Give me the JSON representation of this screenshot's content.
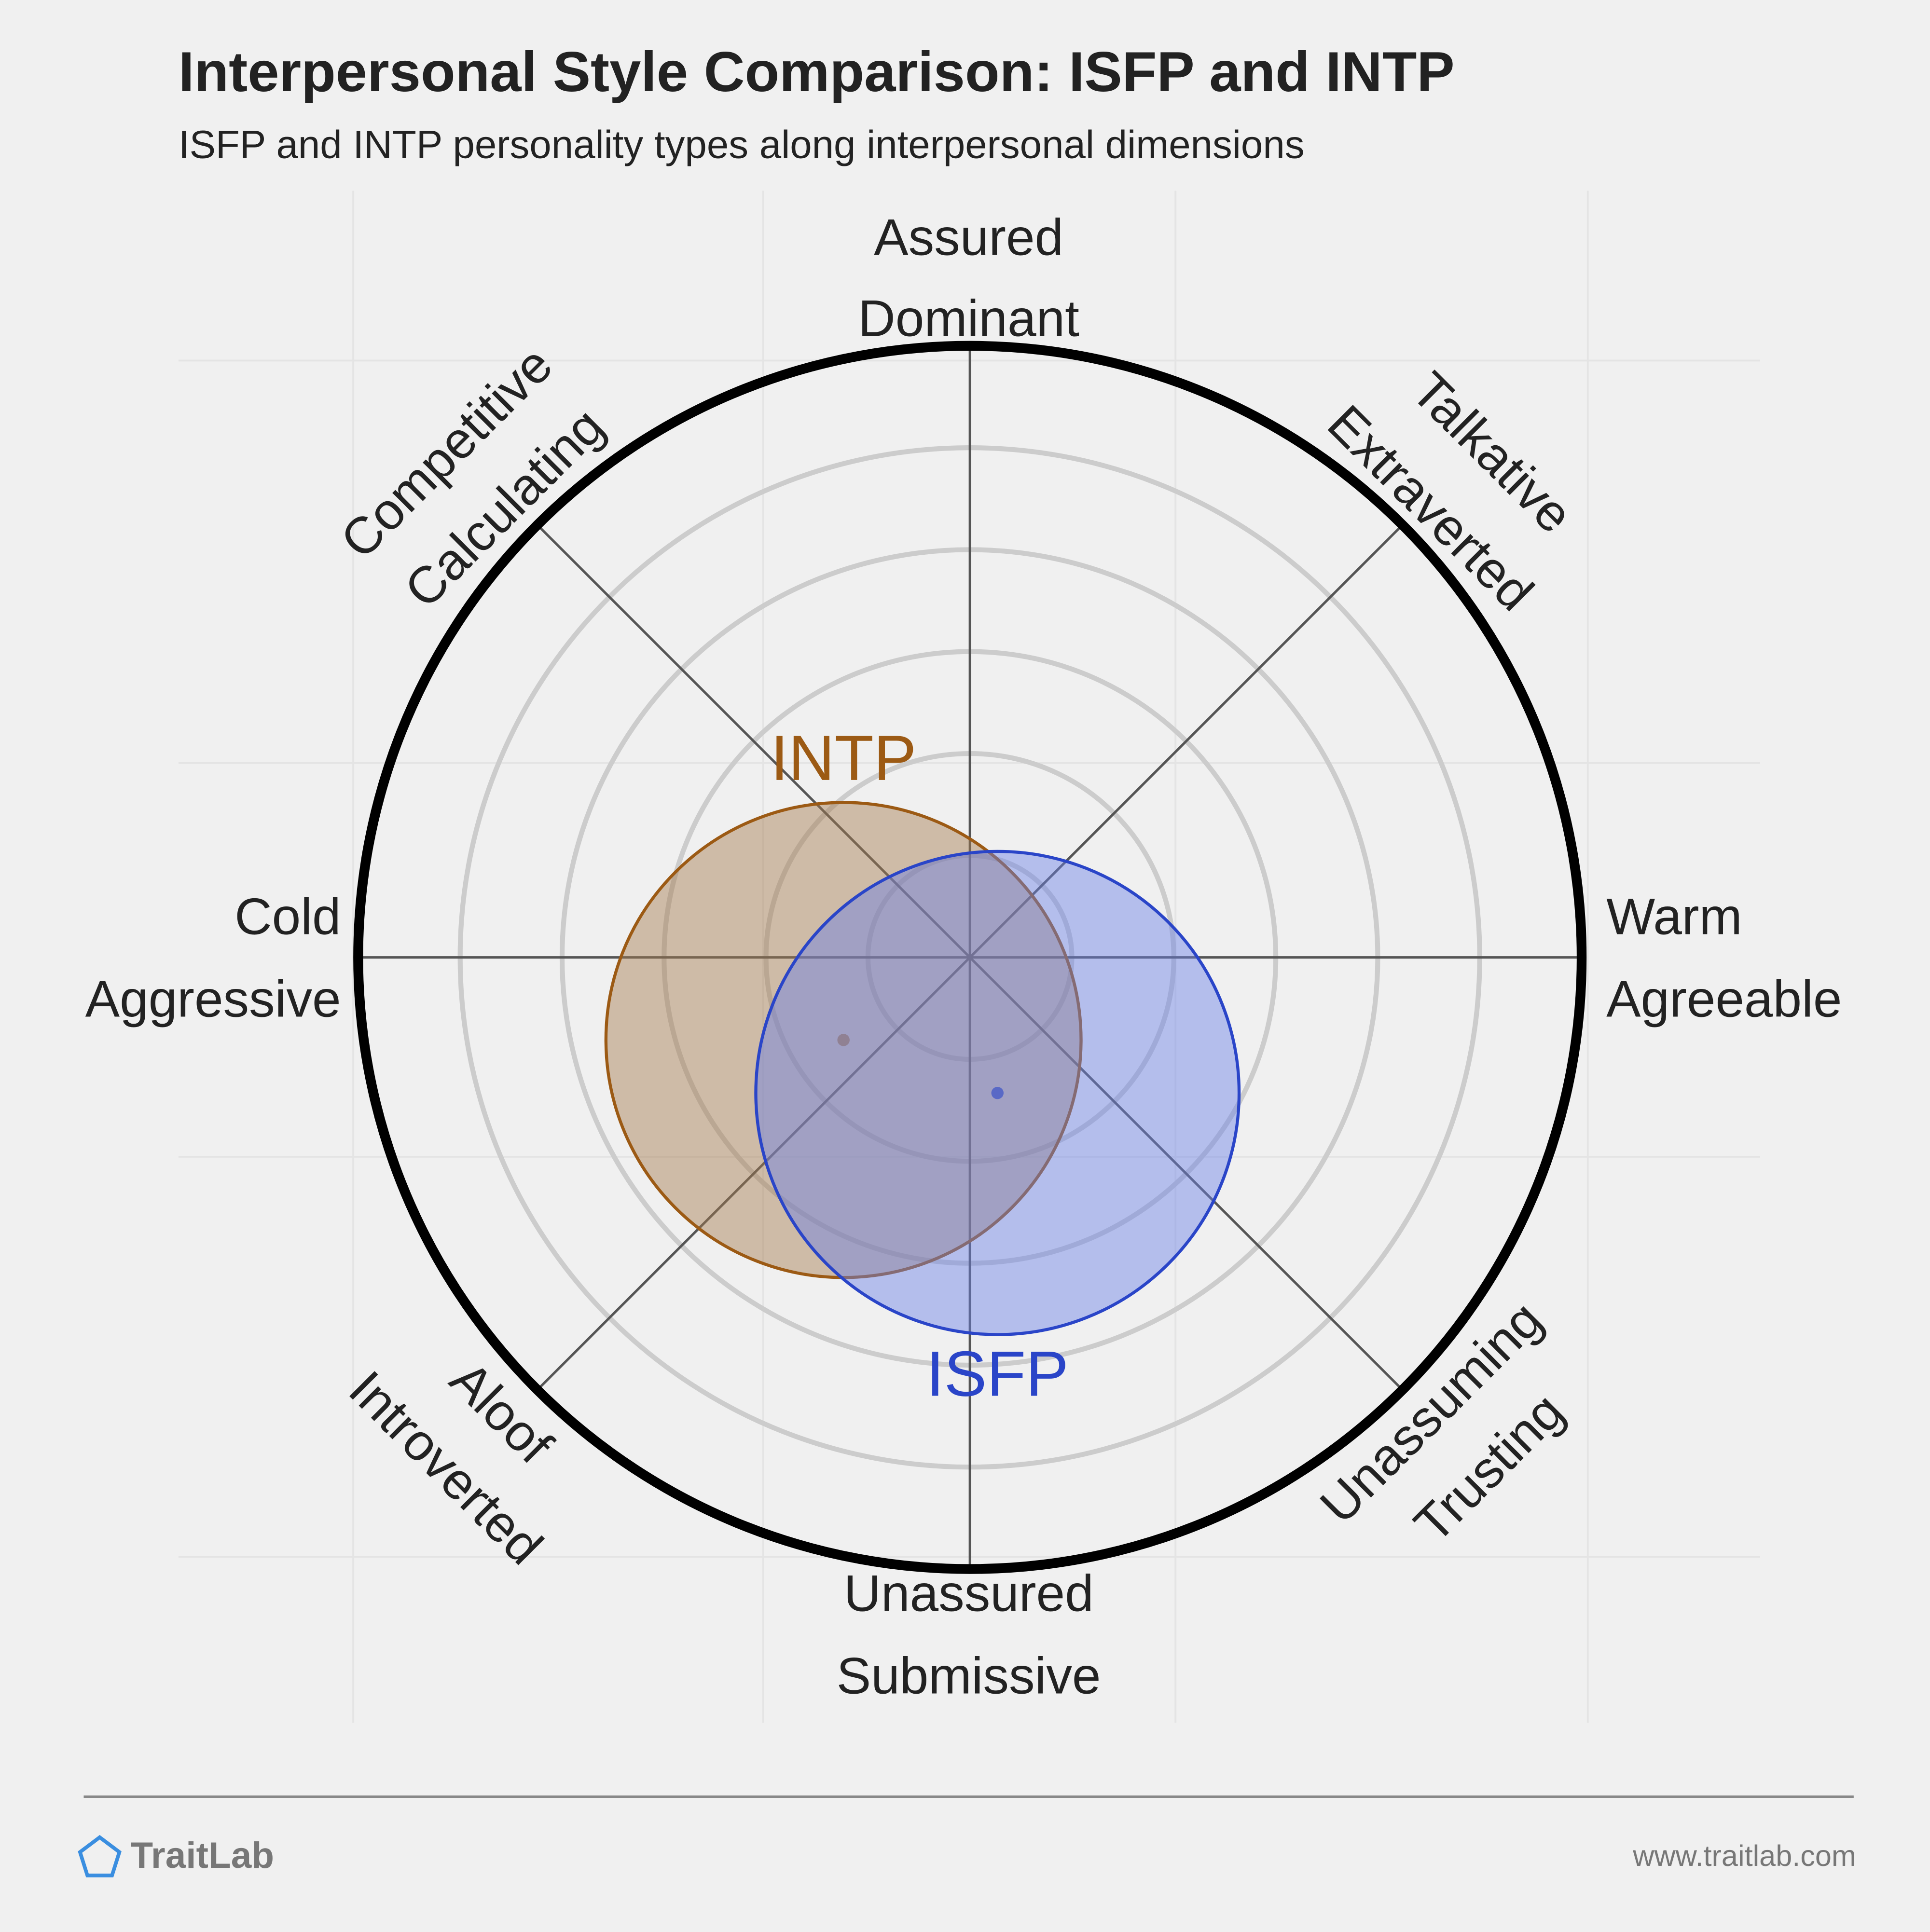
{
  "chart_data": {
    "type": "circumplex",
    "title": "Interpersonal Style Comparison: ISFP and INTP",
    "subtitle": "ISFP and INTP personality types along interpersonal dimensions",
    "axis_labels": [
      [
        "Assured",
        "Dominant"
      ],
      [
        "Talkative",
        "Extraverted"
      ],
      [
        "Warm",
        "Agreeable"
      ],
      [
        "Unassuming",
        "Trusting"
      ],
      [
        "Unassured",
        "Submissive"
      ],
      [
        "Aloof",
        "Introverted"
      ],
      [
        "Cold",
        "Aggressive"
      ],
      [
        "Competitive",
        "Calculating"
      ]
    ],
    "rlim": 6,
    "rings": [
      1,
      2,
      3,
      4,
      5
    ],
    "series": [
      {
        "name": "INTP",
        "x": -1.24,
        "y": -0.81,
        "size": 2.33,
        "color": "#9c5a14",
        "fill": "#a57a4e"
      },
      {
        "name": "ISFP",
        "x": 0.27,
        "y": -1.33,
        "size": 2.37,
        "color": "#2a45c8",
        "fill": "#6b80e6"
      }
    ]
  },
  "footer": {
    "brand": "TraitLab",
    "url": "www.traitlab.com"
  }
}
